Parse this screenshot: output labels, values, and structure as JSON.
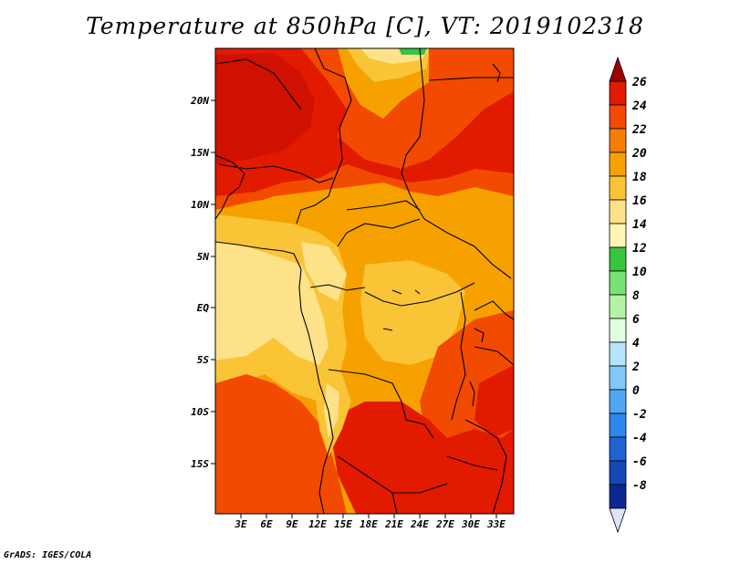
{
  "title": "Temperature at 850hPa [C], VT: 2019102318",
  "credit": "GrADS: IGES/COLA",
  "map": {
    "variable": "Temperature at 850hPa",
    "units": "C",
    "valid_time": "2019102318",
    "lat_labels": [
      "20N",
      "15N",
      "10N",
      "5N",
      "EQ",
      "5S",
      "10S",
      "15S"
    ],
    "lon_labels": [
      "3E",
      "6E",
      "9E",
      "12E",
      "15E",
      "18E",
      "21E",
      "24E",
      "27E",
      "30E",
      "33E"
    ]
  },
  "colorbar": {
    "labels": [
      "26",
      "24",
      "22",
      "20",
      "18",
      "16",
      "14",
      "12",
      "10",
      "8",
      "6",
      "4",
      "2",
      "0",
      "-2",
      "-4",
      "-6",
      "-8"
    ],
    "colors": [
      "#a00000",
      "#e11a00",
      "#f24a00",
      "#f57d00",
      "#f7a100",
      "#fac437",
      "#fee28a",
      "#fff5b4",
      "#37c53c",
      "#78e372",
      "#b4f3a6",
      "#e1ffe1",
      "#b5e4fb",
      "#82c8f9",
      "#4ea7f5",
      "#2e87eb",
      "#1e64d3",
      "#1448b4",
      "#0a2892",
      "#dde5fb"
    ]
  }
}
